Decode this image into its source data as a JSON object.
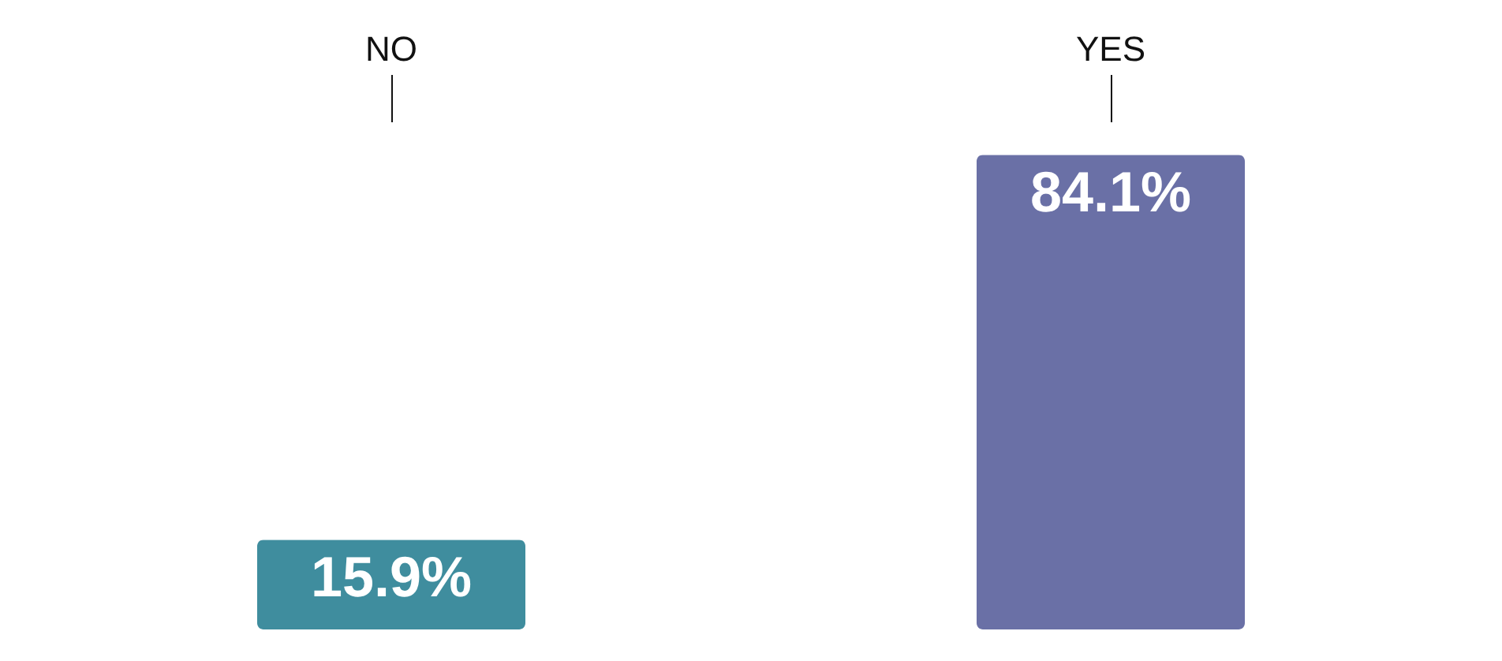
{
  "chart_data": {
    "type": "bar",
    "categories": [
      "NO",
      "YES"
    ],
    "values": [
      15.9,
      84.1
    ],
    "colors": [
      "#3f8d9e",
      "#6a70a6"
    ],
    "value_labels": [
      "15.9%",
      "84.1%"
    ]
  }
}
